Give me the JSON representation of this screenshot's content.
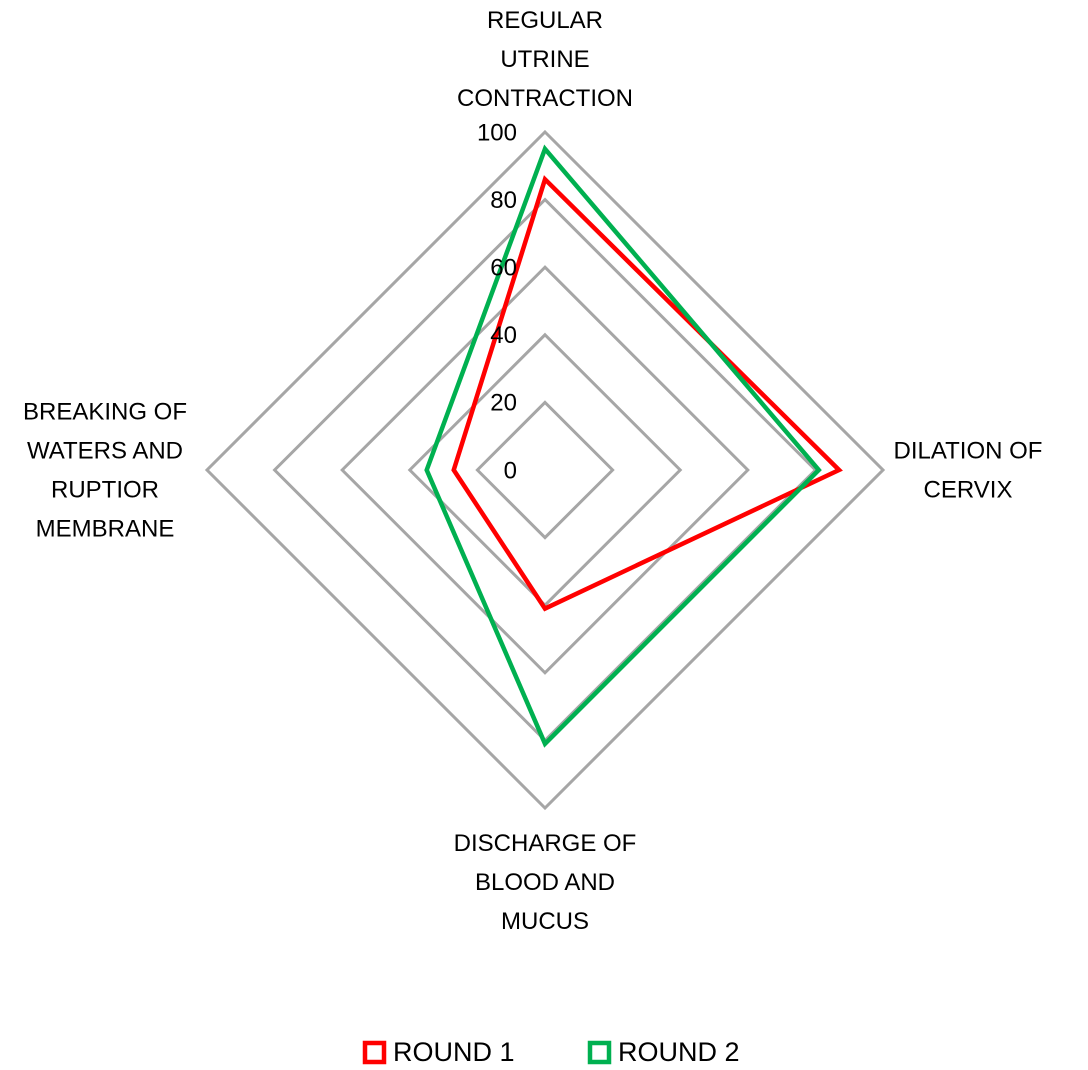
{
  "chart_data": {
    "type": "radar",
    "categories": [
      "REGULAR UTRINE CONTRACTION",
      "DILATION OF CERVIX",
      "DISCHARGE OF BLOOD AND MUCUS",
      "BREAKING OF WATERS AND RUPTIOR MEMBRANE"
    ],
    "series": [
      {
        "name": "ROUND 1",
        "color": "#ff0000",
        "values": [
          86,
          87,
          41,
          27
        ]
      },
      {
        "name": "ROUND 2",
        "color": "#00b050",
        "values": [
          95,
          81,
          81,
          35
        ]
      }
    ],
    "ylim": [
      0,
      100
    ],
    "yticks": [
      0,
      20,
      40,
      60,
      80,
      100
    ],
    "grid": true,
    "legend": "bottom"
  }
}
